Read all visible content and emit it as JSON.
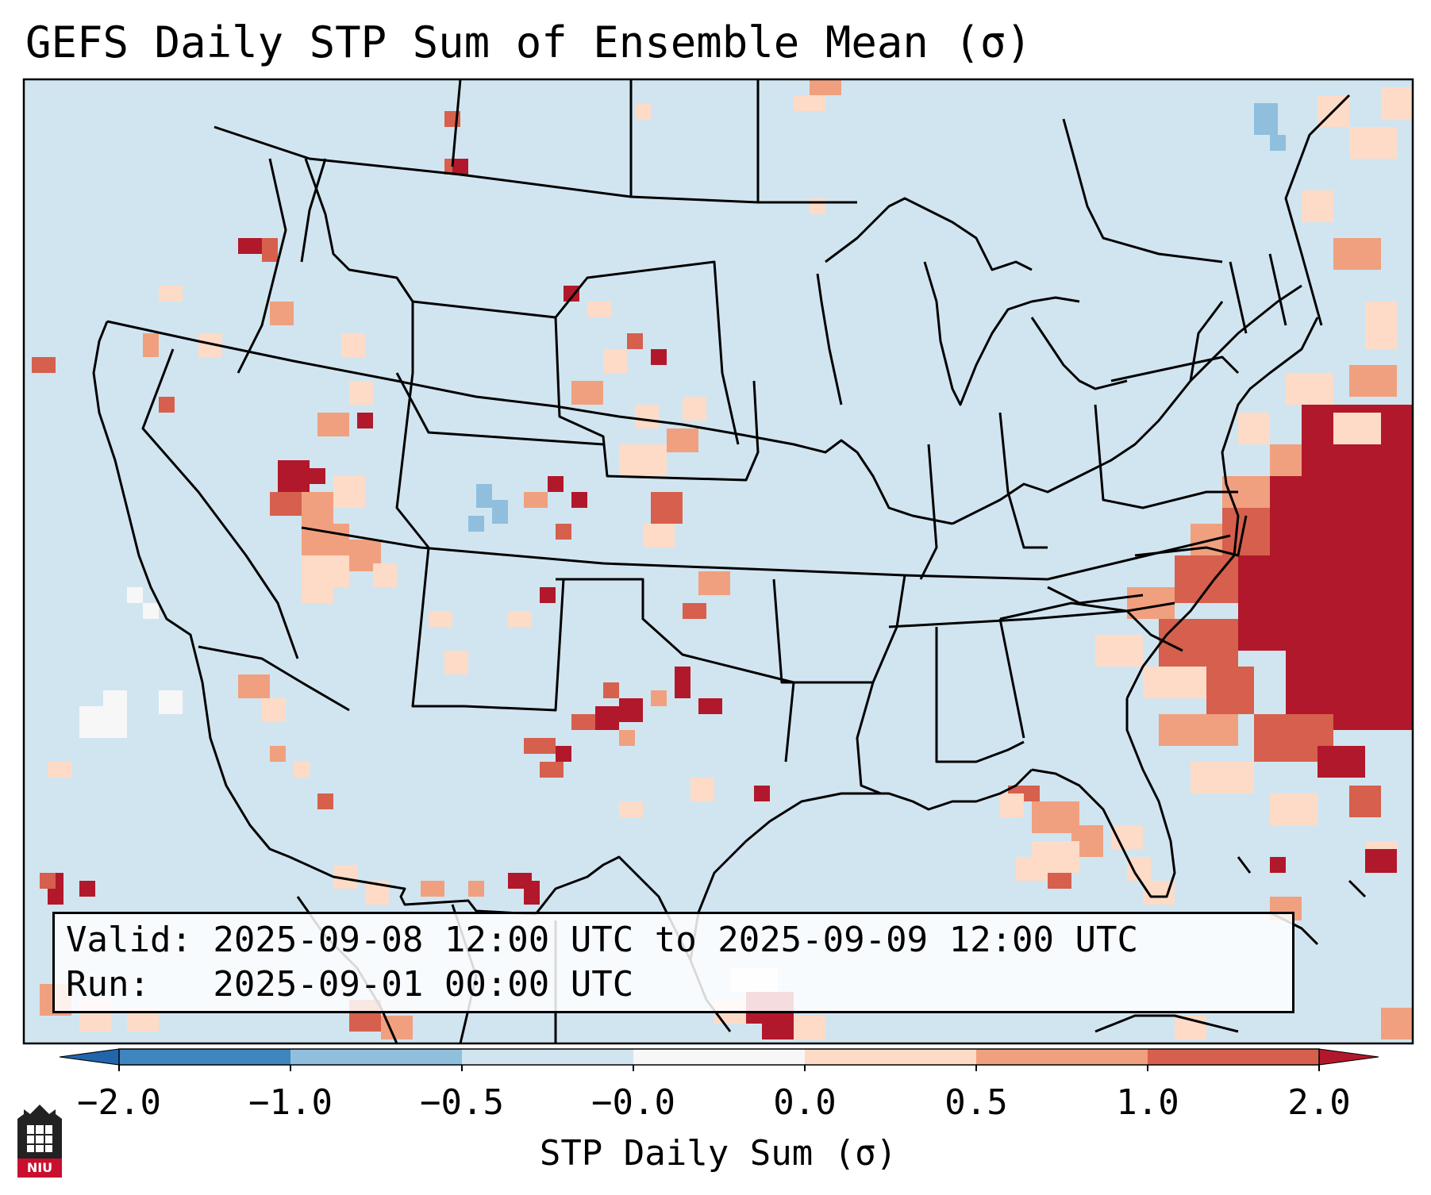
{
  "title": "GEFS Daily STP Sum of Ensemble Mean (σ)",
  "info": {
    "valid_line": "Valid: 2025-09-08 12:00 UTC to 2025-09-09 12:00 UTC",
    "run_line": "Run:   2025-09-01 00:00 UTC"
  },
  "colorbar": {
    "label": "STP Daily Sum (σ)",
    "ticks": [
      "−2.0",
      "−1.0",
      "−0.5",
      "−0.0",
      "0.0",
      "0.5",
      "1.0",
      "2.0"
    ],
    "bin_colors": [
      "#3f85bf",
      "#8fbfdd",
      "#d1e5f0",
      "#f7f7f7",
      "#fddbc7",
      "#f0a07f",
      "#d6604d",
      "#b2182b"
    ],
    "under_color": "#2166ac",
    "over_color": "#b2182b"
  },
  "colors": {
    "ocean_land": "#d1e5f0",
    "border": "#000000"
  },
  "logo": {
    "text": "NIU"
  }
}
